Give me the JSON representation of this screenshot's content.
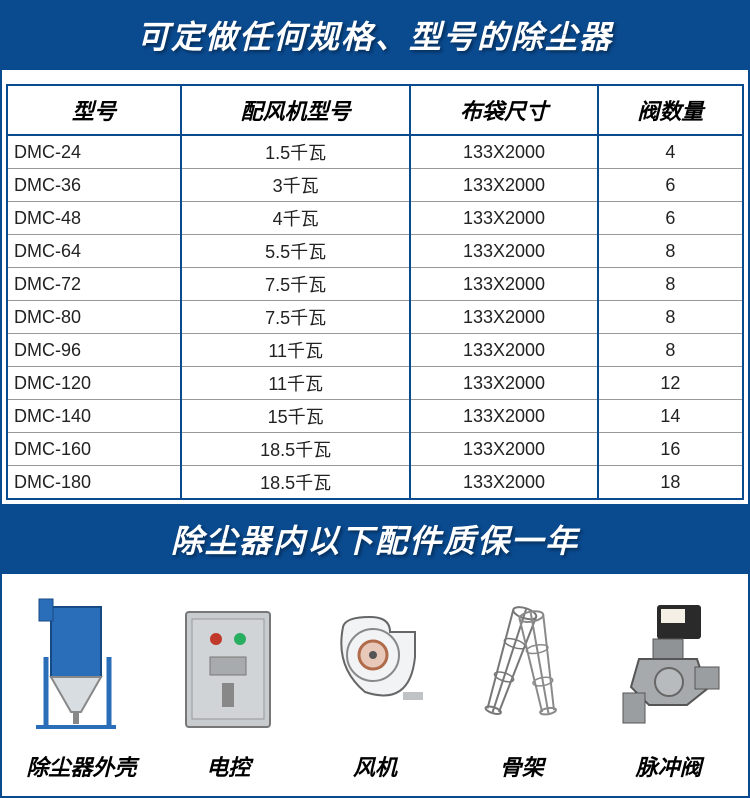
{
  "colors": {
    "brand_blue": "#0a4a8f",
    "white": "#ffffff",
    "text": "#222222",
    "grid_line": "#999999"
  },
  "typography": {
    "heading_fontsize": 32,
    "th_fontsize": 22,
    "td_fontsize": 18,
    "part_label_fontsize": 22
  },
  "heading1": "可定做任何规格、型号的除尘器",
  "heading2": "除尘器内以下配件质保一年",
  "table": {
    "columns": [
      "型号",
      "配风机型号",
      "布袋尺寸",
      "阀数量"
    ],
    "col_align": [
      "left",
      "center",
      "center",
      "center"
    ],
    "rows": [
      [
        "DMC-24",
        "1.5千瓦",
        "133X2000",
        "4"
      ],
      [
        "DMC-36",
        "3千瓦",
        "133X2000",
        "6"
      ],
      [
        "DMC-48",
        "4千瓦",
        "133X2000",
        "6"
      ],
      [
        "DMC-64",
        "5.5千瓦",
        "133X2000",
        "8"
      ],
      [
        "DMC-72",
        "7.5千瓦",
        "133X2000",
        "8"
      ],
      [
        "DMC-80",
        "7.5千瓦",
        "133X2000",
        "8"
      ],
      [
        "DMC-96",
        "11千瓦",
        "133X2000",
        "8"
      ],
      [
        "DMC-120",
        "11千瓦",
        "133X2000",
        "12"
      ],
      [
        "DMC-140",
        "15千瓦",
        "133X2000",
        "14"
      ],
      [
        "DMC-160",
        "18.5千瓦",
        "133X2000",
        "16"
      ],
      [
        "DMC-180",
        "18.5千瓦",
        "133X2000",
        "18"
      ]
    ]
  },
  "parts": [
    {
      "label": "除尘器外壳",
      "icon": "dust-collector-shell"
    },
    {
      "label": "电控",
      "icon": "control-box"
    },
    {
      "label": "风机",
      "icon": "fan-blower"
    },
    {
      "label": "骨架",
      "icon": "filter-cage"
    },
    {
      "label": "脉冲阀",
      "icon": "pulse-valve"
    }
  ]
}
